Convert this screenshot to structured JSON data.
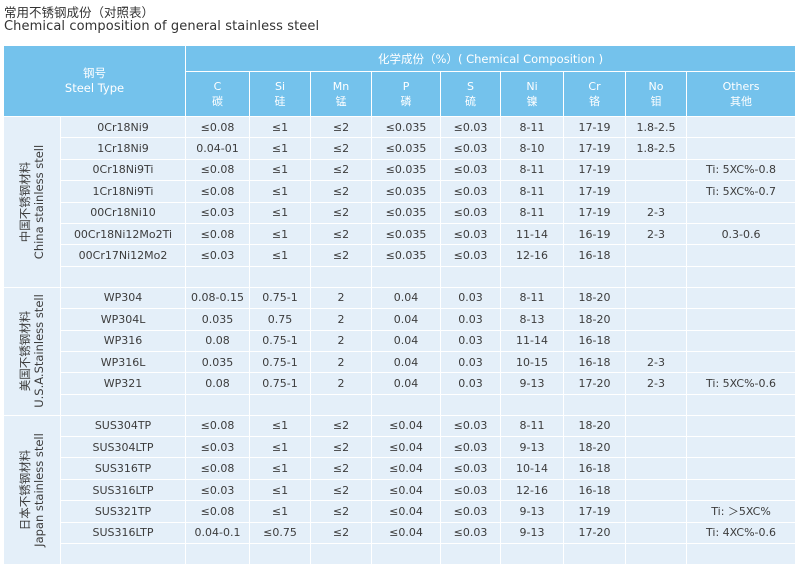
{
  "title_cn": "常用不锈钢成份（对照表）",
  "title_en": "Chemical composition of general stainless steel",
  "header": {
    "steel_type_cn": "钢号",
    "steel_type_en": "Steel Type",
    "composition": "化学成份（%）( Chemical Composition )",
    "columns": [
      {
        "en": "C",
        "cn": "碳"
      },
      {
        "en": "Si",
        "cn": "硅"
      },
      {
        "en": "Mn",
        "cn": "锰"
      },
      {
        "en": "P",
        "cn": "磷"
      },
      {
        "en": "S",
        "cn": "硫"
      },
      {
        "en": "Ni",
        "cn": "镍"
      },
      {
        "en": "Cr",
        "cn": "铬"
      },
      {
        "en": "No",
        "cn": "钼"
      },
      {
        "en": "Others",
        "cn": "其他"
      }
    ]
  },
  "groups": [
    {
      "label_cn": "中国不锈钢材料",
      "label_en": "China stainless stell",
      "rows": [
        {
          "type": "0Cr18Ni9",
          "c": "≤0.08",
          "si": "≤1",
          "mn": "≤2",
          "p": "≤0.035",
          "s": "≤0.03",
          "ni": "8-11",
          "cr": "17-19",
          "mo": "1.8-2.5",
          "others": ""
        },
        {
          "type": "1Cr18Ni9",
          "c": "0.04-01",
          "si": "≤1",
          "mn": "≤2",
          "p": "≤0.035",
          "s": "≤0.03",
          "ni": "8-10",
          "cr": "17-19",
          "mo": "1.8-2.5",
          "others": ""
        },
        {
          "type": "0Cr18Ni9Ti",
          "c": "≤0.08",
          "si": "≤1",
          "mn": "≤2",
          "p": "≤0.035",
          "s": "≤0.03",
          "ni": "8-11",
          "cr": "17-19",
          "mo": "",
          "others": "Ti: 5XC%-0.8"
        },
        {
          "type": "1Cr18Ni9Ti",
          "c": "≤0.08",
          "si": "≤1",
          "mn": "≤2",
          "p": "≤0.035",
          "s": "≤0.03",
          "ni": "8-11",
          "cr": "17-19",
          "mo": "",
          "others": "Ti: 5XC%-0.7"
        },
        {
          "type": "00Cr18Ni10",
          "c": "≤0.03",
          "si": "≤1",
          "mn": "≤2",
          "p": "≤0.035",
          "s": "≤0.03",
          "ni": "8-11",
          "cr": "17-19",
          "mo": "2-3",
          "others": ""
        },
        {
          "type": "00Cr18Ni12Mo2Ti",
          "c": "≤0.08",
          "si": "≤1",
          "mn": "≤2",
          "p": "≤0.035",
          "s": "≤0.03",
          "ni": "11-14",
          "cr": "16-19",
          "mo": "2-3",
          "others": "0.3-0.6"
        },
        {
          "type": "00Cr17Ni12Mo2",
          "c": "≤0.03",
          "si": "≤1",
          "mn": "≤2",
          "p": "≤0.035",
          "s": "≤0.03",
          "ni": "12-16",
          "cr": "16-18",
          "mo": "",
          "others": ""
        }
      ]
    },
    {
      "label_cn": "美国不锈钢材料",
      "label_en": "U.S.A.Stainless stell",
      "rows": [
        {
          "type": "WP304",
          "c": "0.08-0.15",
          "si": "0.75-1",
          "mn": "2",
          "p": "0.04",
          "s": "0.03",
          "ni": "8-11",
          "cr": "18-20",
          "mo": "",
          "others": ""
        },
        {
          "type": "WP304L",
          "c": "0.035",
          "si": "0.75",
          "mn": "2",
          "p": "0.04",
          "s": "0.03",
          "ni": "8-13",
          "cr": "18-20",
          "mo": "",
          "others": ""
        },
        {
          "type": "WP316",
          "c": "0.08",
          "si": "0.75-1",
          "mn": "2",
          "p": "0.04",
          "s": "0.03",
          "ni": "11-14",
          "cr": "16-18",
          "mo": "",
          "others": ""
        },
        {
          "type": "WP316L",
          "c": "0.035",
          "si": "0.75-1",
          "mn": "2",
          "p": "0.04",
          "s": "0.03",
          "ni": "10-15",
          "cr": "16-18",
          "mo": "2-3",
          "others": ""
        },
        {
          "type": "WP321",
          "c": "0.08",
          "si": "0.75-1",
          "mn": "2",
          "p": "0.04",
          "s": "0.03",
          "ni": "9-13",
          "cr": "17-20",
          "mo": "2-3",
          "others": "Ti: 5XC%-0.6"
        }
      ]
    },
    {
      "label_cn": "日本不锈钢材料",
      "label_en": "Japan stainless stell",
      "rows": [
        {
          "type": "SUS304TP",
          "c": "≤0.08",
          "si": "≤1",
          "mn": "≤2",
          "p": "≤0.04",
          "s": "≤0.03",
          "ni": "8-11",
          "cr": "18-20",
          "mo": "",
          "others": ""
        },
        {
          "type": "SUS304LTP",
          "c": "≤0.03",
          "si": "≤1",
          "mn": "≤2",
          "p": "≤0.04",
          "s": "≤0.03",
          "ni": "9-13",
          "cr": "18-20",
          "mo": "",
          "others": ""
        },
        {
          "type": "SUS316TP",
          "c": "≤0.08",
          "si": "≤1",
          "mn": "≤2",
          "p": "≤0.04",
          "s": "≤0.03",
          "ni": "10-14",
          "cr": "16-18",
          "mo": "",
          "others": ""
        },
        {
          "type": "SUS316LTP",
          "c": "≤0.03",
          "si": "≤1",
          "mn": "≤2",
          "p": "≤0.04",
          "s": "≤0.03",
          "ni": "12-16",
          "cr": "16-18",
          "mo": "",
          "others": ""
        },
        {
          "type": "SUS321TP",
          "c": "≤0.08",
          "si": "≤1",
          "mn": "≤2",
          "p": "≤0.04",
          "s": "≤0.03",
          "ni": "9-13",
          "cr": "17-19",
          "mo": "",
          "others": "Ti: ＞5XC%"
        },
        {
          "type": "SUS316LTP",
          "c": "0.04-0.1",
          "si": "≤0.75",
          "mn": "≤2",
          "p": "≤0.04",
          "s": "≤0.03",
          "ni": "9-13",
          "cr": "17-20",
          "mo": "",
          "others": "Ti: 4XC%-0.6"
        }
      ]
    }
  ]
}
